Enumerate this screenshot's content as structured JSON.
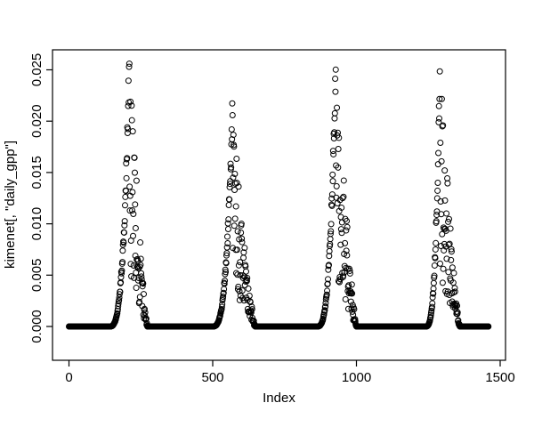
{
  "figure": {
    "background": "#ffffff",
    "point_color": "#000000",
    "axis_color": "#000000",
    "box": "plain-border"
  },
  "chart_data": {
    "type": "scatter",
    "title": "",
    "xlabel": "Index",
    "ylabel": "kimenet[, \"daily_gpp\"]",
    "xlim": [
      0,
      1500
    ],
    "ylim": [
      0.0,
      0.025
    ],
    "x_ticks": [
      0,
      500,
      1000,
      1500
    ],
    "x_tick_labels": [
      "0",
      "500",
      "1000",
      "1500"
    ],
    "y_ticks": [
      0.0,
      0.005,
      0.01,
      0.015,
      0.02,
      0.025
    ],
    "y_tick_labels": [
      "0.000",
      "0.005",
      "0.010",
      "0.015",
      "0.020",
      "0.025"
    ],
    "grid": false,
    "legend": null,
    "marker": "open-circle",
    "n_points": 1460,
    "baseline_value": 0,
    "series_description": "Daily GPP values: zero between growing seasons, four seasonal peaks with tight steep rises and widely scattered declines",
    "seasons": [
      {
        "rise_start": 140,
        "peak_index": 210,
        "peak_value": 0.0255,
        "fall_end": 273
      },
      {
        "rise_start": 498,
        "peak_index": 568,
        "peak_value": 0.0202,
        "fall_end": 648
      },
      {
        "rise_start": 862,
        "peak_index": 928,
        "peak_value": 0.0255,
        "fall_end": 1000
      },
      {
        "rise_start": 1240,
        "peak_index": 1290,
        "peak_value": 0.0246,
        "fall_end": 1360
      }
    ],
    "value_clamp_max": 0.0256
  }
}
